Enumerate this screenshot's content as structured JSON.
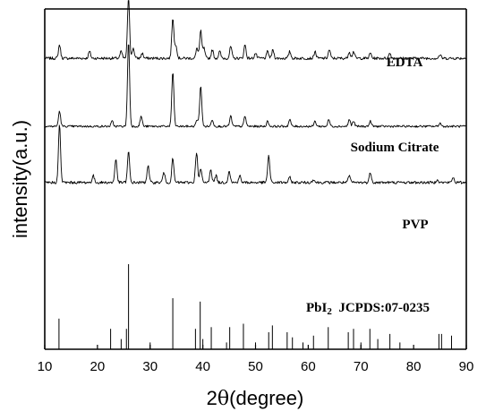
{
  "chart_data": {
    "type": "line",
    "xlabel_prefix": "2",
    "xlabel_theta": "θ",
    "xlabel_suffix": "(degree)",
    "ylabel": "intensity(a.u.)",
    "xlim": [
      10,
      90
    ],
    "xticks": [
      10,
      20,
      30,
      40,
      50,
      60,
      70,
      80,
      90
    ],
    "y_ticks_labeled": false,
    "grid": false,
    "series": [
      {
        "name": "EDTA",
        "baseline": 0.855,
        "noise": 0.004,
        "peaks": [
          [
            12.8,
            0.04
          ],
          [
            18.5,
            0.02
          ],
          [
            24.5,
            0.02
          ],
          [
            25.9,
            0.18
          ],
          [
            26.8,
            0.03
          ],
          [
            28.5,
            0.015
          ],
          [
            34.3,
            0.12
          ],
          [
            34.9,
            0.04
          ],
          [
            38.9,
            0.03
          ],
          [
            39.6,
            0.08
          ],
          [
            40.2,
            0.03
          ],
          [
            41.8,
            0.025
          ],
          [
            43.2,
            0.02
          ],
          [
            45.3,
            0.035
          ],
          [
            48.0,
            0.04
          ],
          [
            50.0,
            0.015
          ],
          [
            52.3,
            0.02
          ],
          [
            53.3,
            0.025
          ],
          [
            56.5,
            0.02
          ],
          [
            61.3,
            0.02
          ],
          [
            64.0,
            0.025
          ],
          [
            67.8,
            0.02
          ],
          [
            68.6,
            0.02
          ],
          [
            71.8,
            0.015
          ],
          [
            75.5,
            0.015
          ],
          [
            85.0,
            0.01
          ]
        ]
      },
      {
        "name": "Sodium Citrate",
        "baseline": 0.655,
        "noise": 0.003,
        "peaks": [
          [
            12.8,
            0.045
          ],
          [
            22.8,
            0.015
          ],
          [
            25.9,
            0.25
          ],
          [
            28.3,
            0.03
          ],
          [
            34.3,
            0.16
          ],
          [
            38.9,
            0.02
          ],
          [
            39.6,
            0.12
          ],
          [
            41.8,
            0.02
          ],
          [
            45.3,
            0.03
          ],
          [
            48.0,
            0.03
          ],
          [
            52.3,
            0.015
          ],
          [
            56.5,
            0.02
          ],
          [
            61.3,
            0.015
          ],
          [
            63.9,
            0.02
          ],
          [
            67.8,
            0.02
          ],
          [
            68.6,
            0.015
          ],
          [
            71.8,
            0.015
          ],
          [
            85.0,
            0.01
          ]
        ]
      },
      {
        "name": "PVP",
        "baseline": 0.49,
        "noise": 0.004,
        "peaks": [
          [
            12.8,
            0.17
          ],
          [
            19.2,
            0.02
          ],
          [
            23.5,
            0.07
          ],
          [
            25.9,
            0.09
          ],
          [
            29.6,
            0.05
          ],
          [
            32.6,
            0.03
          ],
          [
            34.3,
            0.07
          ],
          [
            38.8,
            0.09
          ],
          [
            39.6,
            0.04
          ],
          [
            41.5,
            0.04
          ],
          [
            42.5,
            0.02
          ],
          [
            45.0,
            0.035
          ],
          [
            47.0,
            0.02
          ],
          [
            52.5,
            0.08
          ],
          [
            56.5,
            0.015
          ],
          [
            61.0,
            0.01
          ],
          [
            67.8,
            0.02
          ],
          [
            71.8,
            0.03
          ],
          [
            84.5,
            0.01
          ],
          [
            87.5,
            0.015
          ]
        ]
      }
    ],
    "reference": {
      "name_prefix": "PbI",
      "name_subscript": "2",
      "name_rest": "  JCPDS:07-0235",
      "sticks": [
        [
          12.7,
          0.09
        ],
        [
          22.5,
          0.06
        ],
        [
          24.5,
          0.03
        ],
        [
          25.5,
          0.06
        ],
        [
          25.9,
          0.25
        ],
        [
          30.0,
          0.02
        ],
        [
          34.3,
          0.15
        ],
        [
          38.6,
          0.06
        ],
        [
          39.5,
          0.14
        ],
        [
          40.0,
          0.03
        ],
        [
          41.6,
          0.065
        ],
        [
          44.5,
          0.02
        ],
        [
          45.1,
          0.065
        ],
        [
          47.7,
          0.075
        ],
        [
          50.0,
          0.02
        ],
        [
          52.5,
          0.05
        ],
        [
          53.2,
          0.07
        ],
        [
          56.0,
          0.05
        ],
        [
          57.0,
          0.035
        ],
        [
          59.0,
          0.02
        ],
        [
          61.0,
          0.04
        ],
        [
          63.8,
          0.065
        ],
        [
          67.6,
          0.05
        ],
        [
          68.6,
          0.06
        ],
        [
          70.0,
          0.02
        ],
        [
          71.7,
          0.06
        ],
        [
          73.2,
          0.03
        ],
        [
          75.5,
          0.045
        ],
        [
          77.4,
          0.02
        ],
        [
          84.8,
          0.045
        ],
        [
          85.3,
          0.045
        ],
        [
          87.2,
          0.04
        ]
      ]
    }
  }
}
